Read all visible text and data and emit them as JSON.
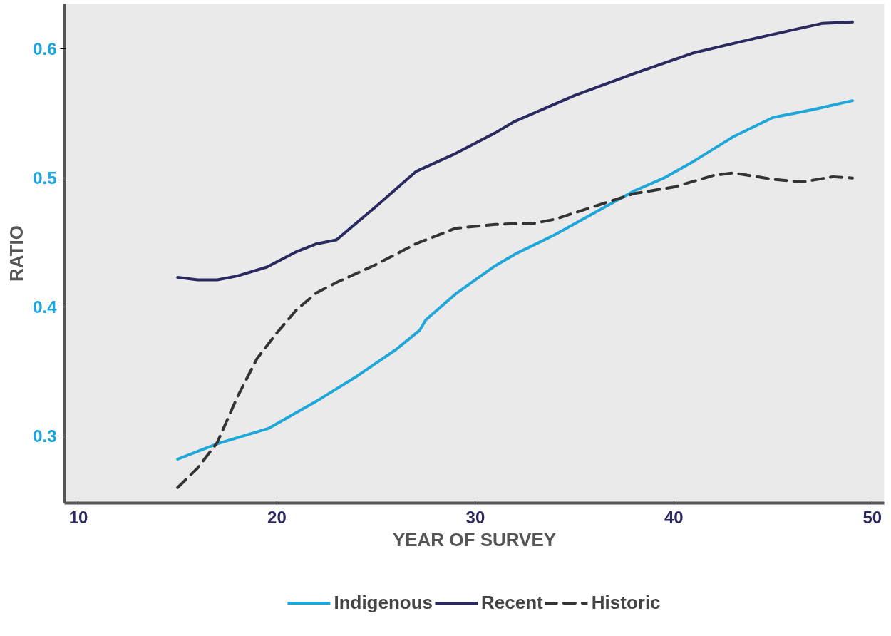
{
  "chart_data": {
    "type": "line",
    "xlabel": "YEAR OF SURVEY",
    "ylabel": "RATIO",
    "xlim": [
      9.3,
      50.6
    ],
    "ylim": [
      0.248,
      0.635
    ],
    "xticks": [
      10,
      20,
      30,
      40,
      50
    ],
    "yticks": [
      0.3,
      0.4,
      0.5,
      0.6
    ],
    "legend": "bottom",
    "marker": "none",
    "series": [
      {
        "name": "Indigenous",
        "color": "#1ea7d8",
        "line_style": "solid",
        "x": [
          15,
          17,
          19.6,
          22,
          24,
          26,
          27.2,
          27.5,
          29,
          31,
          32,
          34,
          36,
          38,
          39.5,
          41,
          43,
          45,
          47,
          49
        ],
        "values": [
          0.282,
          0.294,
          0.306,
          0.327,
          0.346,
          0.367,
          0.382,
          0.39,
          0.41,
          0.432,
          0.441,
          0.456,
          0.473,
          0.49,
          0.5,
          0.513,
          0.532,
          0.547,
          0.553,
          0.56
        ]
      },
      {
        "name": "Recent",
        "color": "#2a2a60",
        "line_style": "solid",
        "x": [
          15,
          16,
          17,
          18,
          19.5,
          21,
          22,
          23,
          25,
          27,
          29,
          31,
          32,
          35,
          38,
          41,
          44,
          47.5,
          49
        ],
        "values": [
          0.423,
          0.421,
          0.421,
          0.424,
          0.431,
          0.443,
          0.449,
          0.452,
          0.478,
          0.505,
          0.519,
          0.535,
          0.544,
          0.564,
          0.581,
          0.597,
          0.608,
          0.62,
          0.621
        ]
      },
      {
        "name": "Historic",
        "color": "#333333",
        "line_style": "dashed",
        "x": [
          15,
          16,
          17,
          18,
          19,
          20,
          21,
          22,
          23,
          25,
          27,
          29,
          31,
          33,
          34,
          36,
          38,
          40,
          42,
          43,
          45,
          46.5,
          48,
          49
        ],
        "values": [
          0.26,
          0.275,
          0.295,
          0.33,
          0.36,
          0.38,
          0.398,
          0.411,
          0.419,
          0.433,
          0.449,
          0.461,
          0.464,
          0.465,
          0.468,
          0.478,
          0.488,
          0.493,
          0.502,
          0.504,
          0.499,
          0.497,
          0.501,
          0.5
        ]
      }
    ]
  }
}
